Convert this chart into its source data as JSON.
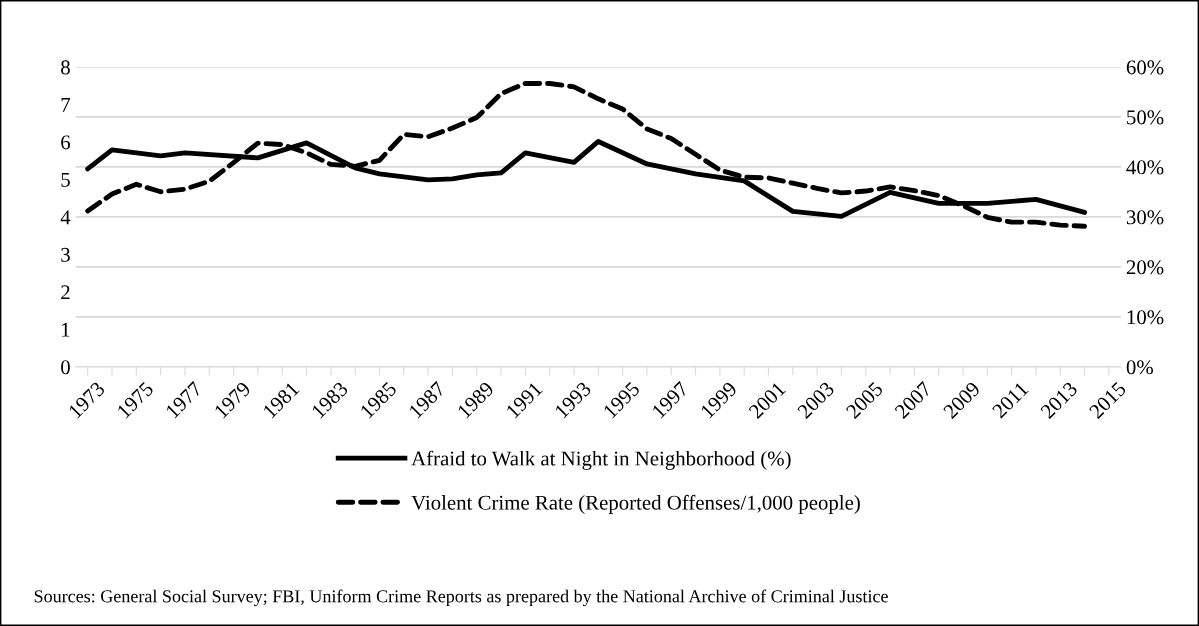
{
  "chart_data": {
    "type": "line",
    "xlim": [
      1972.5,
      2015.5
    ],
    "xticks": [
      {
        "value": 1973,
        "label": "1973"
      },
      {
        "value": 1974,
        "label": null
      },
      {
        "value": 1975,
        "label": "1975"
      },
      {
        "value": 1976,
        "label": null
      },
      {
        "value": 1977,
        "label": "1977"
      },
      {
        "value": 1978,
        "label": null
      },
      {
        "value": 1979,
        "label": "1979"
      },
      {
        "value": 1980,
        "label": null
      },
      {
        "value": 1981,
        "label": "1981"
      },
      {
        "value": 1982,
        "label": null
      },
      {
        "value": 1983,
        "label": "1983"
      },
      {
        "value": 1984,
        "label": null
      },
      {
        "value": 1985,
        "label": "1985"
      },
      {
        "value": 1986,
        "label": null
      },
      {
        "value": 1987,
        "label": "1987"
      },
      {
        "value": 1988,
        "label": null
      },
      {
        "value": 1989,
        "label": "1989"
      },
      {
        "value": 1990,
        "label": null
      },
      {
        "value": 1991,
        "label": "1991"
      },
      {
        "value": 1992,
        "label": null
      },
      {
        "value": 1993,
        "label": "1993"
      },
      {
        "value": 1994,
        "label": null
      },
      {
        "value": 1995,
        "label": "1995"
      },
      {
        "value": 1996,
        "label": null
      },
      {
        "value": 1997,
        "label": "1997"
      },
      {
        "value": 1998,
        "label": null
      },
      {
        "value": 1999,
        "label": "1999"
      },
      {
        "value": 2000,
        "label": null
      },
      {
        "value": 2001,
        "label": "2001"
      },
      {
        "value": 2002,
        "label": null
      },
      {
        "value": 2003,
        "label": "2003"
      },
      {
        "value": 2004,
        "label": null
      },
      {
        "value": 2005,
        "label": "2005"
      },
      {
        "value": 2006,
        "label": null
      },
      {
        "value": 2007,
        "label": "2007"
      },
      {
        "value": 2008,
        "label": null
      },
      {
        "value": 2009,
        "label": "2009"
      },
      {
        "value": 2010,
        "label": null
      },
      {
        "value": 2011,
        "label": "2011"
      },
      {
        "value": 2012,
        "label": null
      },
      {
        "value": 2013,
        "label": "2013"
      },
      {
        "value": 2014,
        "label": null
      },
      {
        "value": 2015,
        "label": "2015"
      }
    ],
    "ylim": [
      0,
      8
    ],
    "yticks": [
      0,
      1,
      2,
      3,
      4,
      5,
      6,
      7,
      8
    ],
    "y2lim": [
      0,
      60
    ],
    "y2ticks": [
      {
        "value": 0,
        "label": "0%"
      },
      {
        "value": 10,
        "label": "10%"
      },
      {
        "value": 20,
        "label": "20%"
      },
      {
        "value": 30,
        "label": "30%"
      },
      {
        "value": 40,
        "label": "40%"
      },
      {
        "value": 50,
        "label": "50%"
      },
      {
        "value": 60,
        "label": "60%"
      }
    ],
    "grid": true,
    "legend": "bottom",
    "marker": "none",
    "series": [
      {
        "name": "Afraid to Walk at Night in Neighborhood (%)",
        "color": "#000000",
        "axis": "y2",
        "line_style": "solid",
        "x": [
          1973,
          1974,
          1976,
          1977,
          1980,
          1982,
          1984,
          1985,
          1987,
          1988,
          1989,
          1990,
          1991,
          1993,
          1994,
          1996,
          1998,
          2000,
          2002,
          2004,
          2006,
          2008,
          2010,
          2012,
          2014
        ],
        "values": [
          39.6,
          43.4,
          42.2,
          42.8,
          41.8,
          44.8,
          39.8,
          38.6,
          37.4,
          37.6,
          38.4,
          38.8,
          42.8,
          40.9,
          45.1,
          40.6,
          38.6,
          37.2,
          31.1,
          30.1,
          34.9,
          32.7,
          32.7,
          33.5,
          30.9
        ]
      },
      {
        "name": "Violent Crime Rate (Reported Offenses/1,000 people)",
        "color": "#000000",
        "axis": "y",
        "line_style": "dashed",
        "x": [
          1973,
          1974,
          1975,
          1976,
          1977,
          1978,
          1979,
          1980,
          1981,
          1982,
          1983,
          1984,
          1985,
          1986,
          1987,
          1988,
          1989,
          1990,
          1991,
          1992,
          1993,
          1994,
          1995,
          1996,
          1997,
          1998,
          1999,
          2000,
          2001,
          2002,
          2003,
          2004,
          2005,
          2006,
          2007,
          2008,
          2009,
          2010,
          2011,
          2012,
          2013,
          2014
        ],
        "values": [
          4.16,
          4.61,
          4.87,
          4.67,
          4.74,
          4.95,
          5.45,
          5.97,
          5.93,
          5.71,
          5.4,
          5.35,
          5.51,
          6.2,
          6.14,
          6.37,
          6.65,
          7.29,
          7.56,
          7.56,
          7.47,
          7.15,
          6.88,
          6.35,
          6.09,
          5.67,
          5.25,
          5.06,
          5.04,
          4.9,
          4.76,
          4.64,
          4.69,
          4.8,
          4.7,
          4.57,
          4.3,
          3.99,
          3.86,
          3.86,
          3.78,
          3.75
        ]
      }
    ],
    "annotations": [
      "Sources: General Social Survey; FBI, Uniform Crime Reports as prepared by the National Archive of Criminal Justice"
    ]
  }
}
